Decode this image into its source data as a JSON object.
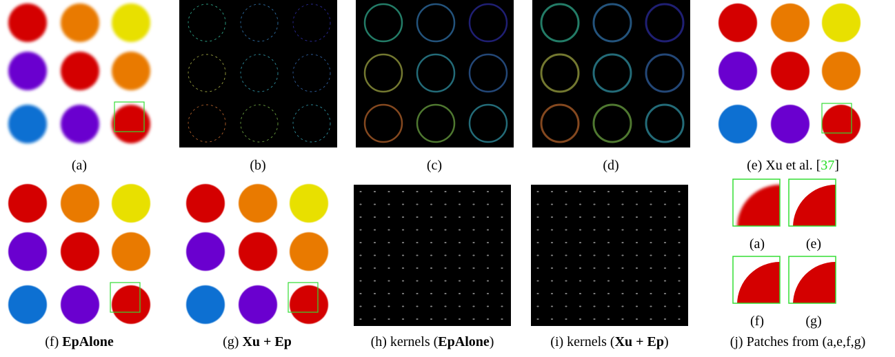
{
  "captions": [
    {
      "parts": [
        "(a)"
      ]
    },
    {
      "parts": [
        "(b)"
      ]
    },
    {
      "parts": [
        "(c)"
      ]
    },
    {
      "parts": [
        "(d)"
      ]
    },
    {
      "parts": [
        "(e) Xu et al. [",
        "37",
        "]"
      ]
    },
    {
      "parts": [
        "(f) ",
        "EpAlone"
      ]
    },
    {
      "parts": [
        "(g) ",
        "Xu + Ep"
      ]
    },
    {
      "parts": [
        "(h) kernels (",
        "EpAlone",
        ")"
      ]
    },
    {
      "parts": [
        "(i) kernels (",
        "Xu + Ep",
        ")"
      ]
    },
    {
      "parts": [
        "(j) Patches from (a,e,f,g)"
      ]
    }
  ],
  "patch_labels": [
    "(a)",
    "(e)",
    "(f)",
    "(g)"
  ]
}
